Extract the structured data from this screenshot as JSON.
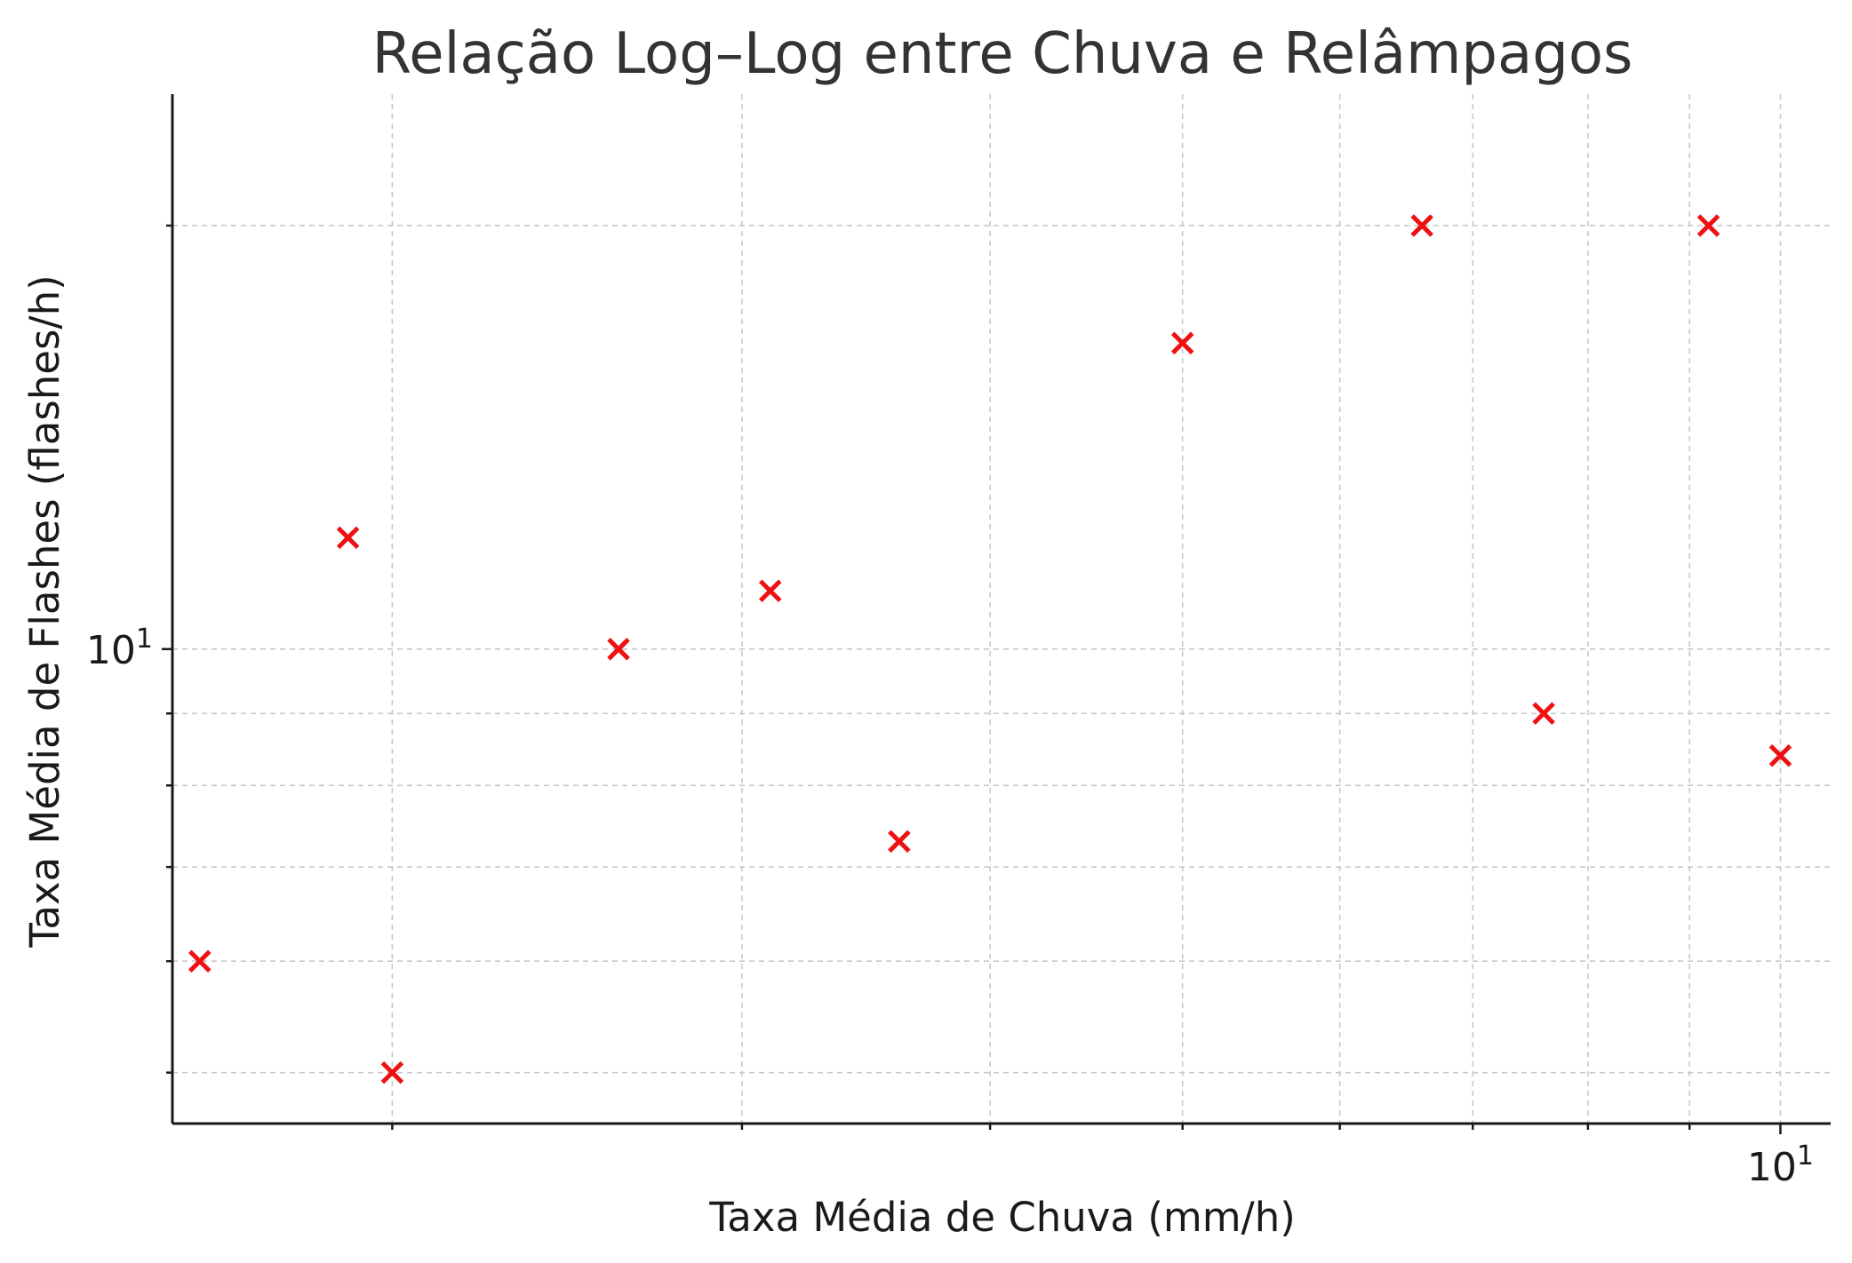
{
  "chart_data": {
    "type": "scatter",
    "title": "Relação Log–Log entre Chuva e Relâmpagos",
    "xlabel": "Taxa Média de Chuva (mm/h)",
    "ylabel": "Taxa Média de Flashes (flashes/h)",
    "xscale": "log",
    "yscale": "log",
    "xlim": [
      1.55,
      10.6
    ],
    "ylim": [
      4.6,
      24.8
    ],
    "grid": true,
    "x_major_ticks": [
      {
        "value": 10,
        "base": "10",
        "exp": "1"
      }
    ],
    "y_major_ticks": [
      {
        "value": 10,
        "base": "10",
        "exp": "1"
      }
    ],
    "x_minor_ticks": [
      2,
      3,
      4,
      5,
      6,
      7,
      8,
      9
    ],
    "y_minor_ticks": [
      5,
      6,
      7,
      8,
      9,
      20
    ],
    "marker": "x",
    "color": "#ee1111",
    "points": [
      {
        "x": 1.6,
        "y": 6
      },
      {
        "x": 1.9,
        "y": 12
      },
      {
        "x": 2.0,
        "y": 5
      },
      {
        "x": 2.6,
        "y": 10
      },
      {
        "x": 3.1,
        "y": 11
      },
      {
        "x": 3.6,
        "y": 7.3
      },
      {
        "x": 5.0,
        "y": 16.5
      },
      {
        "x": 7.6,
        "y": 9
      },
      {
        "x": 6.6,
        "y": 20
      },
      {
        "x": 9.2,
        "y": 20
      },
      {
        "x": 10.0,
        "y": 8.4
      }
    ]
  }
}
